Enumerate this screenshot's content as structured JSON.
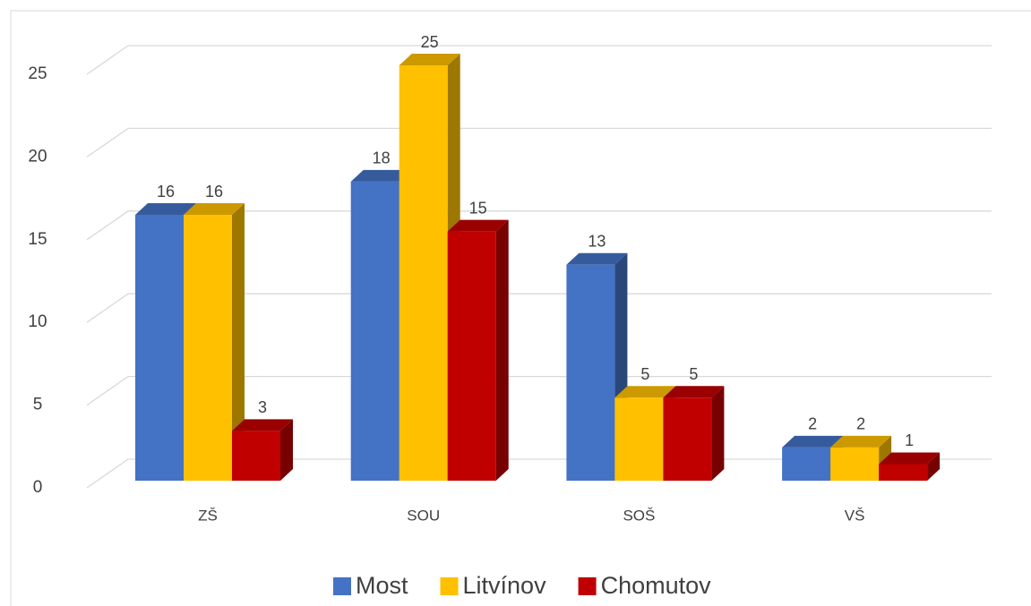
{
  "chart_data": {
    "type": "bar3d",
    "categories": [
      "ZŠ",
      "SOU",
      "SOŠ",
      "VŠ"
    ],
    "series": [
      {
        "name": "Most",
        "color": "#4472c4",
        "values": [
          16,
          18,
          13,
          2
        ]
      },
      {
        "name": "Litvínov",
        "color": "#ffc000",
        "values": [
          16,
          25,
          5,
          2
        ]
      },
      {
        "name": "Chomutov",
        "color": "#c00000",
        "values": [
          3,
          15,
          5,
          1
        ]
      }
    ],
    "ylim": [
      0,
      25
    ],
    "yticks": [
      0,
      5,
      10,
      15,
      20,
      25
    ],
    "grid": true,
    "legend": "bottom"
  }
}
